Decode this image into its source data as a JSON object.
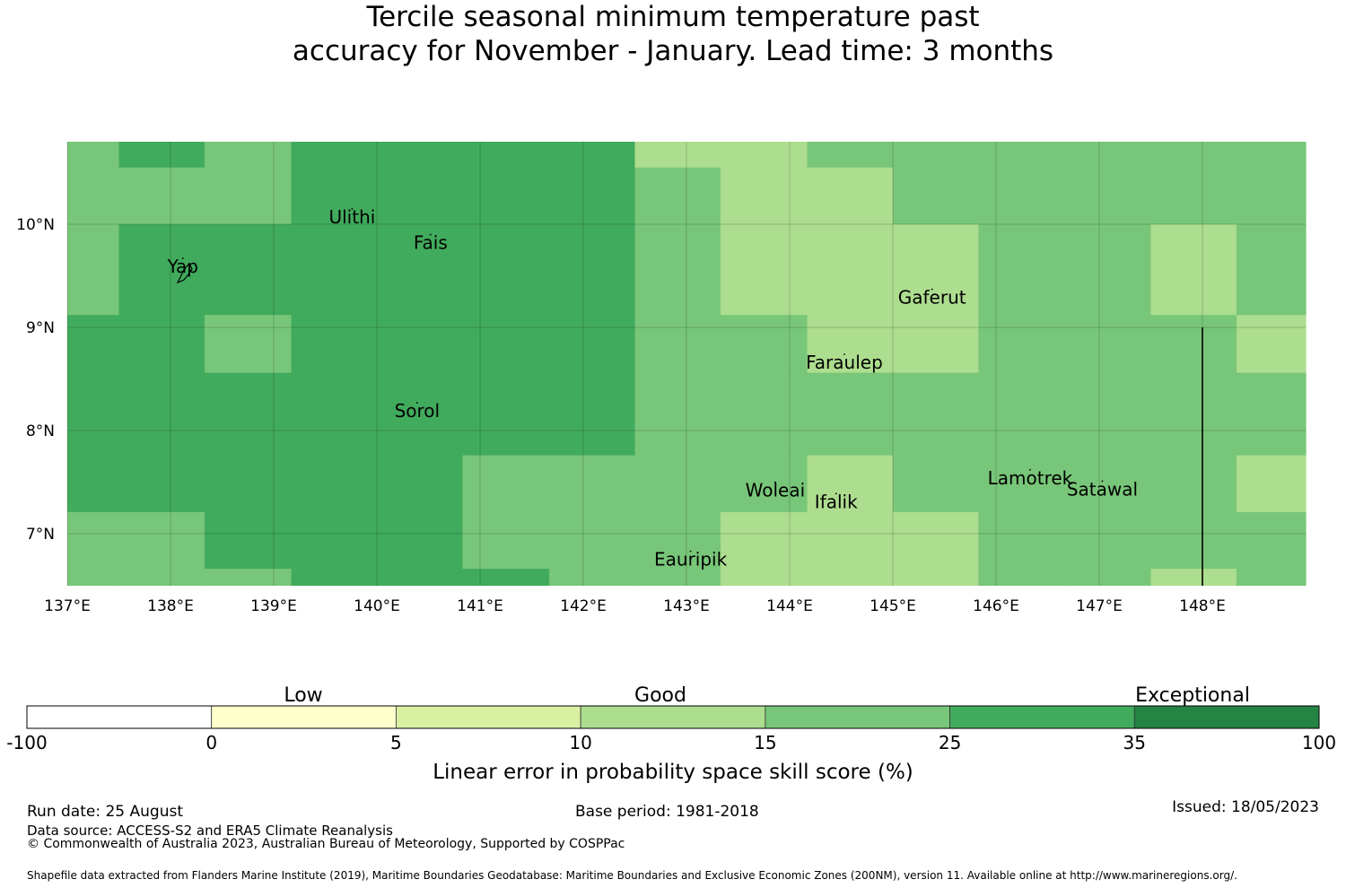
{
  "title_lines": [
    "Tercile seasonal minimum temperature past",
    "accuracy for November - January. Lead time: 3 months"
  ],
  "map": {
    "lon_range": [
      137,
      149
    ],
    "lat_range": [
      6.5,
      10.8
    ],
    "lon_ticks": [
      "137°E",
      "138°E",
      "139°E",
      "140°E",
      "141°E",
      "142°E",
      "143°E",
      "144°E",
      "145°E",
      "146°E",
      "147°E",
      "148°E"
    ],
    "lat_ticks": [
      "10°N",
      "9°N",
      "8°N",
      "7°N"
    ],
    "places": [
      {
        "name": "Ulithi",
        "lon": 139.76,
        "lat": 10.01
      },
      {
        "name": "Fais",
        "lon": 140.52,
        "lat": 9.76
      },
      {
        "name": "Yap",
        "lon": 138.12,
        "lat": 9.53
      },
      {
        "name": "Gaferut",
        "lon": 145.38,
        "lat": 9.23
      },
      {
        "name": "Faraulep",
        "lon": 144.53,
        "lat": 8.6
      },
      {
        "name": "Sorol",
        "lon": 140.39,
        "lat": 8.13
      },
      {
        "name": "Woleai",
        "lon": 143.86,
        "lat": 7.36
      },
      {
        "name": "Ifalik",
        "lon": 144.45,
        "lat": 7.25
      },
      {
        "name": "Lamotrek",
        "lon": 146.33,
        "lat": 7.48
      },
      {
        "name": "Satawal",
        "lon": 147.03,
        "lat": 7.37
      },
      {
        "name": "Eauripik",
        "lon": 143.04,
        "lat": 6.69
      }
    ],
    "boundary_line": {
      "lon": 148.0,
      "lat_from": 9.0,
      "lat_to": 6.5
    },
    "grid_lon_edges": [
      137,
      137.5,
      138.33,
      139.17,
      140,
      140.83,
      141.67,
      142.5,
      143.33,
      144.17,
      145,
      145.83,
      146.67,
      147.5,
      148.33,
      149
    ],
    "grid_lat_edges": [
      10.8,
      10.55,
      10.0,
      9.12,
      8.56,
      7.76,
      7.21,
      6.66,
      6.5
    ],
    "cell_classes": [
      [
        4,
        5,
        4,
        5,
        5,
        5,
        5,
        3,
        3,
        4,
        4,
        4,
        4,
        4,
        4
      ],
      [
        4,
        4,
        4,
        5,
        5,
        5,
        5,
        4,
        3,
        3,
        4,
        4,
        4,
        4,
        4
      ],
      [
        4,
        5,
        5,
        5,
        5,
        5,
        5,
        4,
        3,
        3,
        3,
        4,
        4,
        3,
        4
      ],
      [
        5,
        5,
        4,
        5,
        5,
        5,
        5,
        4,
        4,
        3,
        3,
        4,
        4,
        4,
        3
      ],
      [
        5,
        5,
        5,
        5,
        5,
        5,
        5,
        4,
        4,
        4,
        4,
        4,
        4,
        4,
        4
      ],
      [
        5,
        5,
        5,
        5,
        5,
        4,
        4,
        4,
        4,
        3,
        4,
        4,
        4,
        4,
        3
      ],
      [
        4,
        4,
        5,
        5,
        5,
        4,
        4,
        4,
        3,
        3,
        3,
        4,
        4,
        4,
        4
      ],
      [
        4,
        4,
        4,
        5,
        5,
        5,
        4,
        4,
        3,
        3,
        3,
        4,
        4,
        3,
        4
      ]
    ]
  },
  "colorbar": {
    "category_labels": [
      "Low",
      "Good",
      "Exceptional"
    ],
    "boundaries": [
      "-100",
      "0",
      "5",
      "10",
      "15",
      "25",
      "35",
      "100"
    ],
    "colors": [
      "#ffffff",
      "#ffffcc",
      "#d9f0a3",
      "#addd8e",
      "#78c679",
      "#41ab5d",
      "#238443"
    ],
    "label": "Linear error in probability space skill score (%)"
  },
  "footer": {
    "run_date": "Run date: 25 August",
    "base_period": "Base period: 1981-2018",
    "issued": "Issued: 18/05/2023",
    "data_source": "Data source: ACCESS-S2 and ERA5 Climate Reanalysis",
    "copyright": "© Commonwealth of Australia 2023, Australian Bureau of Meteorology, Supported by COSPPac",
    "shapefile": "Shapefile data extracted from Flanders Marine Institute (2019), Maritime Boundaries Geodatabase: Maritime Boundaries and Exclusive Economic Zones (200NM), version 11. Available online at http://www.marineregions.org/."
  }
}
